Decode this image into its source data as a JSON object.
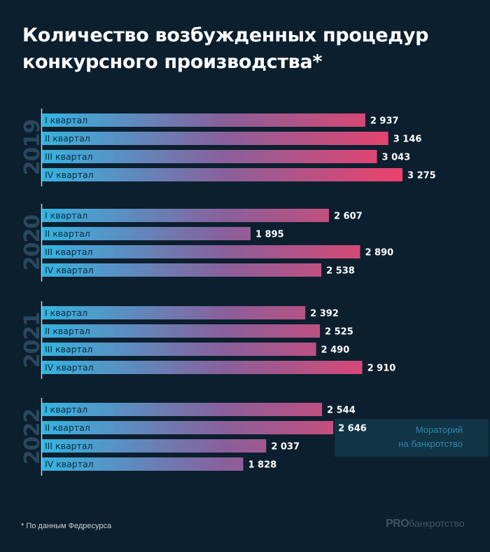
{
  "chart_data": {
    "type": "bar",
    "orientation": "horizontal",
    "title": "Количество возбужденных процедур конкурсного производства*",
    "xlabel": "",
    "ylabel": "",
    "xlim": [
      0,
      3275
    ],
    "grid": false,
    "groups": [
      {
        "year": "2019",
        "categories": [
          "I квартал",
          "II квартал",
          "III квартал",
          "IV квартал"
        ],
        "values": [
          2937,
          3146,
          3043,
          3275
        ],
        "labels": [
          "2 937",
          "3 146",
          "3 043",
          "3 275"
        ]
      },
      {
        "year": "2020",
        "categories": [
          "I квартал",
          "II квартал",
          "III квартал",
          "IV квартал"
        ],
        "values": [
          2607,
          1895,
          2890,
          2538
        ],
        "labels": [
          "2 607",
          "1 895",
          "2 890",
          "2 538"
        ]
      },
      {
        "year": "2021",
        "categories": [
          "I квартал",
          "II квартал",
          "III квартал",
          "IV квартал"
        ],
        "values": [
          2392,
          2525,
          2490,
          2910
        ],
        "labels": [
          "2 392",
          "2 525",
          "2 490",
          "2 910"
        ]
      },
      {
        "year": "2022",
        "categories": [
          "I квартал",
          "II квартал",
          "III квартал",
          "IV квартал"
        ],
        "values": [
          2544,
          2646,
          2037,
          1828
        ],
        "labels": [
          "2 544",
          "2 646",
          "2 037",
          "1 828"
        ]
      }
    ],
    "annotation": {
      "lines": [
        "Мораторий",
        "на банкротство"
      ],
      "group": "2022",
      "spans_quarters": [
        "II квартал",
        "III квартал"
      ]
    },
    "colors": {
      "bar_start": "#35b4e0",
      "bar_mid": "#8a5f9a",
      "bar_end": "#f0416a",
      "year_label": "#28485c",
      "annotation_bg": "#113447",
      "annotation_text": "#2f86a8",
      "category_text": "#0e2a3c"
    }
  },
  "header": {
    "title_line1": "Количество возбужденных процедур",
    "title_line2": "конкурсного производства*"
  },
  "footer": {
    "note": "* По данным Федресурса",
    "logo_pro": "PRO",
    "logo_rest": "банкротство"
  }
}
